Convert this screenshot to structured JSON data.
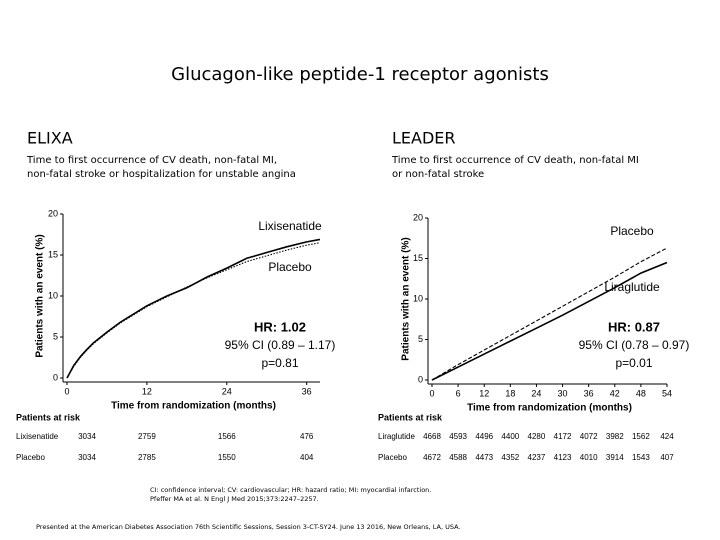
{
  "slide_title": "Glucagon-like peptide-1 receptor agonists",
  "chart_data": [
    {
      "type": "line",
      "title": "ELIXA",
      "subtitle": [
        "Time to first occurrence of CV death, non-fatal MI,",
        "non-fatal stroke or hospitalization for unstable angina"
      ],
      "x_label": "Time from randomization (months)",
      "y_label": "Patients with an event (%)",
      "x": [
        0,
        1,
        2,
        3,
        4,
        6,
        8,
        10,
        12,
        15,
        18,
        21,
        24,
        27,
        30,
        33,
        36,
        38
      ],
      "xlim": [
        0,
        38
      ],
      "xticks": [
        0,
        12,
        24,
        36
      ],
      "ylim": [
        0,
        20
      ],
      "yticks": [
        0,
        5,
        10,
        15,
        20
      ],
      "series": [
        {
          "name": "Lixisenatide",
          "color": "#000000",
          "line_style": "solid",
          "values": [
            0,
            1.5,
            2.6,
            3.5,
            4.3,
            5.6,
            6.8,
            7.8,
            8.8,
            10,
            11,
            12.3,
            13.4,
            14.6,
            15.3,
            16,
            16.6,
            16.9
          ]
        },
        {
          "name": "Placebo",
          "color": "#000000",
          "line_style": "dotted",
          "values": [
            0,
            1.4,
            2.5,
            3.4,
            4.2,
            5.5,
            6.7,
            7.7,
            8.7,
            9.9,
            11.1,
            12.2,
            13.2,
            14.2,
            14.9,
            15.6,
            16.2,
            16.5
          ]
        }
      ],
      "annotations": [
        "HR: 1.02",
        "95% CI (0.89 – 1.17)",
        "p=0.81"
      ],
      "at_risk": {
        "title": "Patients at risk",
        "rows": [
          {
            "name": "Lixisenatide",
            "values": [
              3034,
              2759,
              1566,
              476
            ]
          },
          {
            "name": "Placebo",
            "values": [
              3034,
              2785,
              1550,
              404
            ]
          }
        ]
      }
    },
    {
      "type": "line",
      "title": "LEADER",
      "subtitle": [
        "Time to first occurrence of CV death, non-fatal MI",
        "or non-fatal stroke"
      ],
      "x_label": "Time from randomization (months)",
      "y_label": "Patients with an event (%)",
      "x": [
        0,
        6,
        12,
        18,
        24,
        30,
        36,
        42,
        48,
        54
      ],
      "xlim": [
        0,
        54
      ],
      "xticks": [
        0,
        6,
        12,
        18,
        24,
        30,
        36,
        42,
        48,
        54
      ],
      "ylim": [
        0,
        20
      ],
      "yticks": [
        0,
        5,
        10,
        15,
        20
      ],
      "series": [
        {
          "name": "Placebo",
          "color": "#000000",
          "line_style": "dashed",
          "values": [
            0,
            1.9,
            3.7,
            5.5,
            7.3,
            9.1,
            10.9,
            12.7,
            14.6,
            16.3
          ]
        },
        {
          "name": "Liraglutide",
          "color": "#000000",
          "line_style": "solid",
          "values": [
            0,
            1.6,
            3.2,
            4.8,
            6.4,
            8,
            9.7,
            11.4,
            13.2,
            14.5
          ]
        }
      ],
      "annotations": [
        "HR: 0.87",
        "95% CI (0.78 – 0.97)",
        "p=0.01"
      ],
      "at_risk": {
        "title": "Patients at risk",
        "rows": [
          {
            "name": "Liraglutide",
            "values": [
              4668,
              4593,
              4496,
              4400,
              4280,
              4172,
              4072,
              3982,
              1562,
              424
            ]
          },
          {
            "name": "Placebo",
            "values": [
              4672,
              4588,
              4473,
              4352,
              4237,
              4123,
              4010,
              3914,
              1543,
              407
            ]
          }
        ]
      }
    }
  ],
  "footnotes": [
    "CI: confidence interval; CV: cardiovascular; HR: hazard ratio; MI: myocardial infarction.",
    "Pfeffer MA et al. N Engl J Med 2015;373:2247–2257."
  ],
  "footer": "Presented at the American Diabetes Association 76th Scientific Sessions, Session 3-CT-SY24. June 13 2016, New Orleans, LA, USA."
}
